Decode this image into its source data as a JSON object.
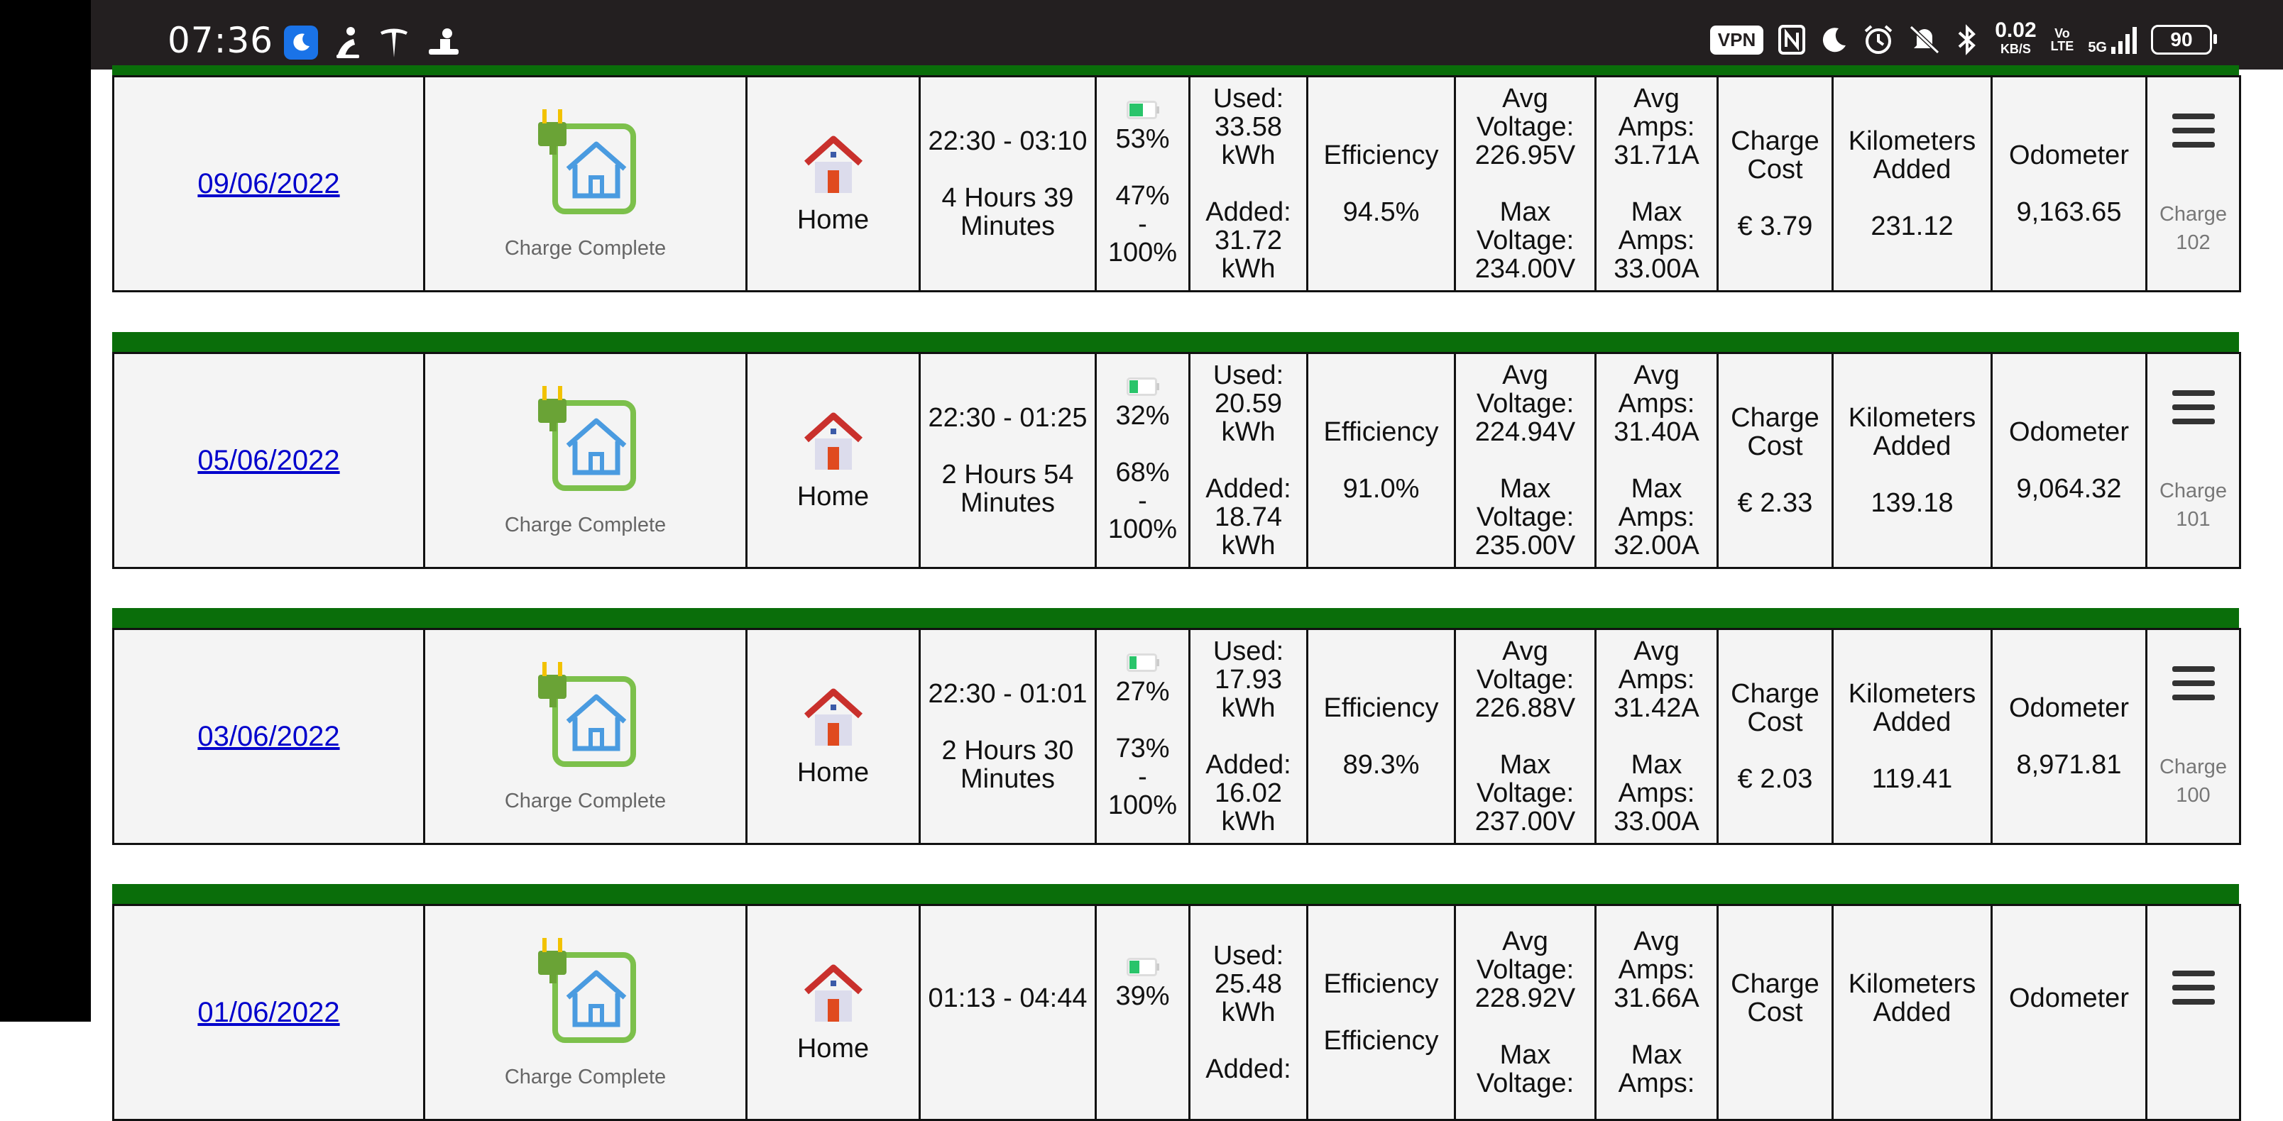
{
  "status_bar": {
    "time": "07:36",
    "vpn": "VPN",
    "speed_value": "0.02",
    "speed_unit": "KB/S",
    "volte_top": "Vo",
    "volte_bottom": "LTE",
    "network": "5G",
    "battery": "90"
  },
  "labels": {
    "charge_status": "Charge Complete",
    "location": "Home",
    "efficiency": "Efficiency",
    "used_prefix": "Used:",
    "added_prefix": "Added:",
    "avg_voltage": "Avg Voltage:",
    "max_voltage": "Max Voltage:",
    "avg_amps": "Avg Amps:",
    "max_amps": "Max Amps:",
    "charge_cost": "Charge Cost",
    "km_added": "Kilometers Added",
    "odometer": "Odometer",
    "dash": "-"
  },
  "colors": {
    "header_bar": "#0a6e0a",
    "link": "#0000cc",
    "status_bar_bg": "#231f20"
  },
  "charges": [
    {
      "date": "09/06/2022",
      "time_range": "22:30 - 03:10",
      "duration": "4 Hours 39 Minutes",
      "soc_start": "53%",
      "soc_added": "47%",
      "soc_end": "100%",
      "battery_level": 0.53,
      "used": "33.58 kWh",
      "added": "31.72 kWh",
      "efficiency": "94.5%",
      "avg_voltage": "226.95V",
      "max_voltage": "234.00V",
      "avg_amps": "31.71A",
      "max_amps": "33.00A",
      "cost": "€ 3.79",
      "km_added": "231.12",
      "odometer": "9,163.65",
      "charge_label": "Charge 102"
    },
    {
      "date": "05/06/2022",
      "time_range": "22:30 - 01:25",
      "duration": "2 Hours 54 Minutes",
      "soc_start": "32%",
      "soc_added": "68%",
      "soc_end": "100%",
      "battery_level": 0.32,
      "used": "20.59 kWh",
      "added": "18.74 kWh",
      "efficiency": "91.0%",
      "avg_voltage": "224.94V",
      "max_voltage": "235.00V",
      "avg_amps": "31.40A",
      "max_amps": "32.00A",
      "cost": "€ 2.33",
      "km_added": "139.18",
      "odometer": "9,064.32",
      "charge_label": "Charge 101"
    },
    {
      "date": "03/06/2022",
      "time_range": "22:30 - 01:01",
      "duration": "2 Hours 30 Minutes",
      "soc_start": "27%",
      "soc_added": "73%",
      "soc_end": "100%",
      "battery_level": 0.27,
      "used": "17.93 kWh",
      "added": "16.02 kWh",
      "efficiency": "89.3%",
      "avg_voltage": "226.88V",
      "max_voltage": "237.00V",
      "avg_amps": "31.42A",
      "max_amps": "33.00A",
      "cost": "€ 2.03",
      "km_added": "119.41",
      "odometer": "8,971.81",
      "charge_label": "Charge 100"
    },
    {
      "date": "01/06/2022",
      "time_range": "01:13 - 04:44",
      "duration": "",
      "soc_start": "39%",
      "soc_added": "",
      "soc_end": "",
      "battery_level": 0.39,
      "used": "25.48 kWh",
      "added": "",
      "efficiency": "Efficiency",
      "avg_voltage": "228.92V",
      "max_voltage": "",
      "avg_amps": "31.66A",
      "max_amps": "",
      "cost": "",
      "km_added": "",
      "odometer": "",
      "charge_label": ""
    }
  ]
}
